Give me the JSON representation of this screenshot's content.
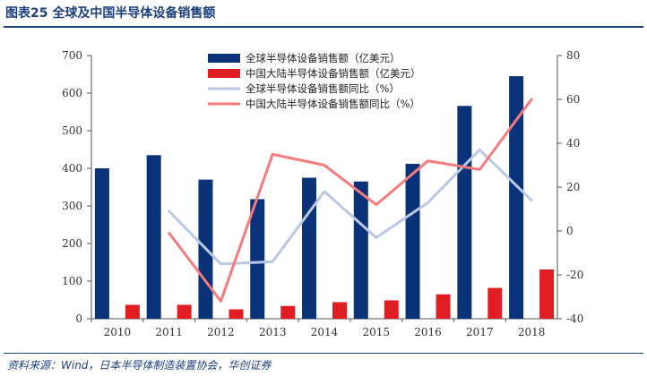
{
  "header": {
    "title": "图表25 全球及中国半导体设备销售额"
  },
  "footer": {
    "source": "资料来源：Wind，日本半导体制造装置协会，华创证券"
  },
  "colors": {
    "global_bar": "#0a3278",
    "china_bar": "#e11d24",
    "global_yoy": "#b9c8e4",
    "china_yoy": "#f57b7d",
    "title": "#1c3f7d"
  },
  "chart_data": {
    "type": "bar",
    "categories": [
      "2010",
      "2011",
      "2012",
      "2013",
      "2014",
      "2015",
      "2016",
      "2017",
      "2018"
    ],
    "series": [
      {
        "name": "全球半导体设备销售额（亿美元）",
        "chart": "bar",
        "axis": "left",
        "values": [
          400,
          435,
          370,
          318,
          375,
          365,
          412,
          566,
          645
        ]
      },
      {
        "name": "中国大陆半导体设备销售额（亿美元）",
        "chart": "bar",
        "axis": "left",
        "values": [
          37,
          37,
          25,
          34,
          44,
          49,
          65,
          82,
          131
        ]
      },
      {
        "name": "全球半导体设备销售额同比（%）",
        "chart": "line",
        "axis": "right",
        "values": [
          null,
          9,
          -15,
          -14,
          18,
          -3,
          13,
          37,
          14
        ]
      },
      {
        "name": "中国大陆半导体设备销售额同比（%）",
        "chart": "line",
        "axis": "right",
        "values": [
          null,
          -1,
          -32,
          35,
          30,
          12,
          32,
          28,
          60
        ]
      }
    ],
    "y_left": {
      "min": 0,
      "max": 700,
      "ticks": [
        "0",
        "100",
        "200",
        "300",
        "400",
        "500",
        "600",
        "700"
      ]
    },
    "y_right": {
      "min": -40,
      "max": 80,
      "ticks": [
        "-40",
        "-20",
        "0",
        "20",
        "40",
        "60",
        "80"
      ]
    },
    "legend_position": "top-center",
    "grid": false
  }
}
